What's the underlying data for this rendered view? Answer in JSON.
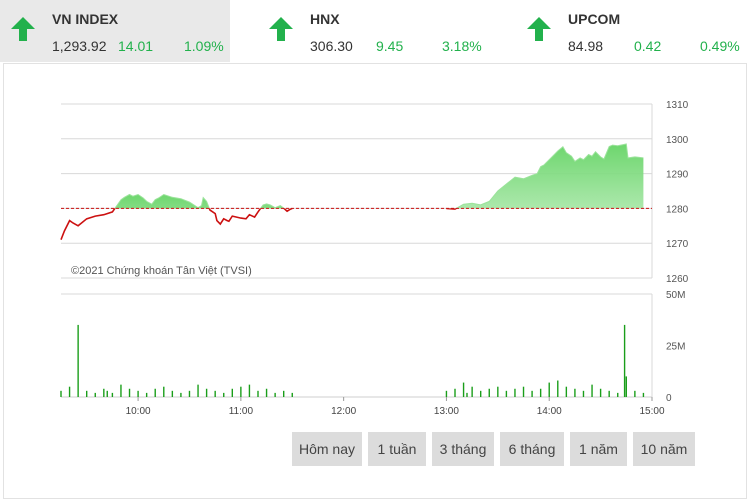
{
  "indices": [
    {
      "name": "VN INDEX",
      "value": "1,293.92",
      "change": "14.01",
      "percent": "1.09%",
      "direction": "up",
      "selected": true
    },
    {
      "name": "HNX",
      "value": "306.30",
      "change": "9.45",
      "percent": "3.18%",
      "direction": "up",
      "selected": false
    },
    {
      "name": "UPCOM",
      "value": "84.98",
      "change": "0.42",
      "percent": "0.49%",
      "direction": "up",
      "selected": false
    }
  ],
  "colors": {
    "up": "#22b14c",
    "line_below": "#cc1111",
    "area": "#6ad46a",
    "reference": "#cc1111",
    "volume": "#1a9e1a"
  },
  "watermark": "©2021 Chứng khoán Tân Việt (TVSI)",
  "ranges": [
    "Hôm nay",
    "1 tuần",
    "3 tháng",
    "6 tháng",
    "1 năm",
    "10 năm"
  ],
  "chart_data": {
    "type": "area",
    "reference_value": 1280,
    "price_axis": {
      "ylim": [
        1260,
        1310
      ],
      "ticks": [
        "1310",
        "1300",
        "1290",
        "1280",
        "1270",
        "1260"
      ]
    },
    "volume_axis": {
      "ylim": [
        0,
        50
      ],
      "ticks": [
        "50M",
        "25M",
        "0"
      ]
    },
    "x_ticks": [
      "10:00",
      "11:00",
      "12:00",
      "13:00",
      "14:00",
      "15:00"
    ],
    "price_series": {
      "name": "",
      "x": [
        "09:15",
        "09:17",
        "09:20",
        "09:22",
        "09:25",
        "09:30",
        "09:35",
        "09:40",
        "09:45",
        "09:50",
        "09:52",
        "09:55",
        "09:57",
        "10:00",
        "10:03",
        "10:05",
        "10:08",
        "10:10",
        "10:12",
        "10:15",
        "10:20",
        "10:25",
        "10:30",
        "10:35",
        "10:37",
        "10:38",
        "10:40",
        "10:42",
        "10:45",
        "10:46",
        "10:48",
        "10:50",
        "10:52",
        "10:53",
        "10:55",
        "11:00",
        "11:03",
        "11:05",
        "11:08",
        "11:10",
        "11:13",
        "11:15",
        "11:17",
        "11:20",
        "11:23",
        "11:25",
        "11:27",
        "11:29",
        "11:30",
        "13:00",
        "13:05",
        "13:10",
        "13:15",
        "13:20",
        "13:25",
        "13:30",
        "13:35",
        "13:40",
        "13:45",
        "13:50",
        "13:53",
        "13:55",
        "13:57",
        "14:00",
        "14:03",
        "14:05",
        "14:08",
        "14:10",
        "14:13",
        "14:15",
        "14:18",
        "14:20",
        "14:23",
        "14:25",
        "14:27",
        "14:30",
        "14:32",
        "14:35",
        "14:37",
        "14:40",
        "14:45",
        "14:46",
        "14:50",
        "14:55"
      ],
      "values": [
        1271.0,
        1273.5,
        1276.5,
        1275.8,
        1275.0,
        1277.0,
        1277.8,
        1278.2,
        1279.0,
        1282.5,
        1283.2,
        1284.0,
        1283.5,
        1284.0,
        1283.0,
        1282.0,
        1281.2,
        1282.5,
        1283.0,
        1284.0,
        1283.2,
        1282.8,
        1281.8,
        1280.2,
        1280.8,
        1283.1,
        1282.0,
        1279.5,
        1278.5,
        1276.5,
        1275.5,
        1277.0,
        1276.5,
        1276.3,
        1277.8,
        1277.2,
        1277.0,
        1278.2,
        1277.5,
        1279.0,
        1281.0,
        1281.3,
        1281.0,
        1280.2,
        1280.8,
        1280.1,
        1279.2,
        1279.8,
        1280.0,
        1280.0,
        1279.8,
        1281.2,
        1281.5,
        1281.0,
        1282.0,
        1285.0,
        1287.0,
        1289.0,
        1288.5,
        1289.5,
        1290.0,
        1292.0,
        1292.5,
        1294.0,
        1295.5,
        1296.5,
        1297.7,
        1296.0,
        1295.0,
        1293.5,
        1294.5,
        1294.0,
        1295.5,
        1295.0,
        1296.3,
        1294.8,
        1294.2,
        1297.8,
        1298.2,
        1298.0,
        1298.5,
        1294.5,
        1294.8,
        1294.5
      ]
    },
    "volume_series": {
      "name": "",
      "x": [
        "09:15",
        "09:20",
        "09:25",
        "09:30",
        "09:35",
        "09:40",
        "09:42",
        "09:45",
        "09:50",
        "09:55",
        "10:00",
        "10:05",
        "10:10",
        "10:15",
        "10:20",
        "10:25",
        "10:30",
        "10:35",
        "10:40",
        "10:45",
        "10:50",
        "10:55",
        "11:00",
        "11:05",
        "11:10",
        "11:15",
        "11:20",
        "11:25",
        "11:30",
        "13:00",
        "13:05",
        "13:10",
        "13:12",
        "13:15",
        "13:20",
        "13:25",
        "13:30",
        "13:35",
        "13:40",
        "13:45",
        "13:50",
        "13:55",
        "14:00",
        "14:05",
        "14:10",
        "14:15",
        "14:20",
        "14:25",
        "14:30",
        "14:35",
        "14:40",
        "14:44",
        "14:45",
        "14:50",
        "14:55"
      ],
      "values": [
        3,
        5,
        35,
        3,
        2,
        4,
        3,
        2,
        6,
        4,
        3,
        2,
        4,
        5,
        3,
        2,
        3,
        6,
        4,
        3,
        2,
        4,
        5,
        6,
        3,
        4,
        2,
        3,
        2,
        3,
        4,
        7,
        2,
        5,
        3,
        4,
        5,
        3,
        4,
        5,
        3,
        4,
        7,
        8,
        5,
        4,
        3,
        6,
        4,
        3,
        2,
        35,
        10,
        3,
        2
      ]
    }
  }
}
